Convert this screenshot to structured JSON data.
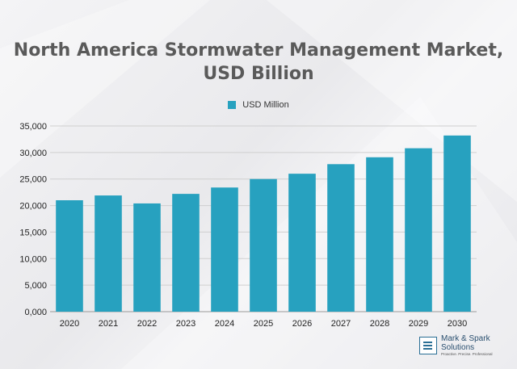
{
  "chart_data": {
    "type": "bar",
    "title_line1": "North America Stormwater Management Market,",
    "title_line2": "USD Billion",
    "legend": [
      "USD Million"
    ],
    "categories": [
      "2020",
      "2021",
      "2022",
      "2023",
      "2024",
      "2025",
      "2026",
      "2027",
      "2028",
      "2029",
      "2030"
    ],
    "series": [
      {
        "name": "USD Million",
        "values": [
          21000,
          21900,
          20400,
          22200,
          23400,
          25000,
          26000,
          27800,
          29100,
          30800,
          33200
        ]
      }
    ],
    "ylim": [
      0,
      35000
    ],
    "yticks": [
      "0,000",
      "5,000",
      "10,000",
      "15,000",
      "20,000",
      "25,000",
      "30,000",
      "35,000"
    ],
    "ytick_values": [
      0,
      5000,
      10000,
      15000,
      20000,
      25000,
      30000,
      35000
    ],
    "grid": true,
    "legend_position": "top-center",
    "bar_color": "#27a1bf"
  },
  "brand": {
    "name_line1": "Mark & Spark",
    "name_line2": "Solutions",
    "tagline": "Proactive. Precise. Professional"
  }
}
